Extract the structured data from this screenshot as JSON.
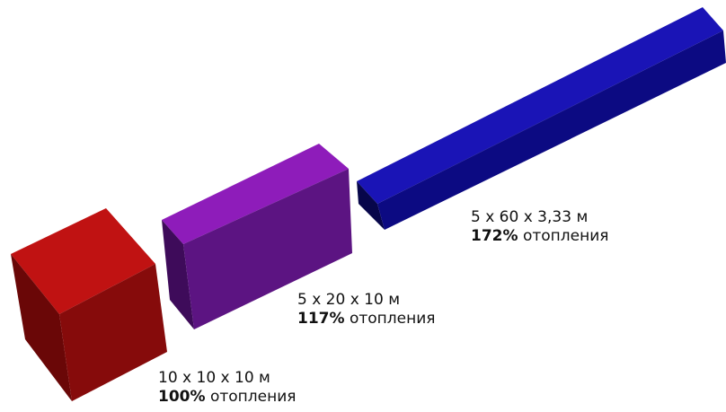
{
  "blocks": [
    {
      "id": "cube",
      "dimensions": "10 x 10 x 10 м",
      "percent": "100%",
      "suffix": "отопления",
      "color": "#c41414"
    },
    {
      "id": "slab",
      "dimensions": "5 x 20 x 10 м",
      "percent": "117%",
      "suffix": "отопления",
      "color": "#8c18b8"
    },
    {
      "id": "beam",
      "dimensions": "5 x 60 x 3,33 м",
      "percent": "172%",
      "suffix": "отопления",
      "color": "#1a12b4"
    }
  ]
}
